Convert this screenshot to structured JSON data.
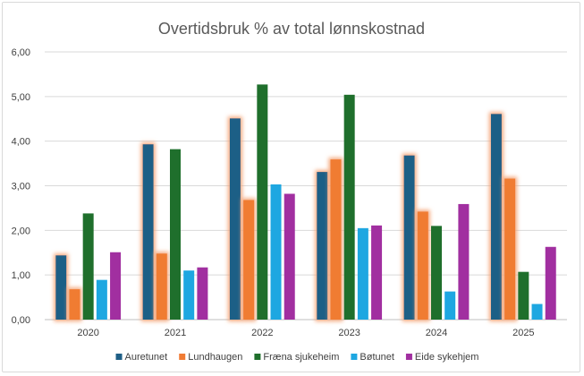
{
  "chart_data": {
    "type": "bar",
    "title": "Overtidsbruk % av total lønnskostnad",
    "xlabel": "",
    "ylabel": "",
    "categories": [
      "2020",
      "2021",
      "2022",
      "2023",
      "2024",
      "2025"
    ],
    "ylim": [
      0,
      6
    ],
    "ytick_values": [
      0,
      1,
      2,
      3,
      4,
      5,
      6
    ],
    "ytick_labels": [
      "0,00",
      "1,00",
      "2,00",
      "3,00",
      "4,00",
      "5,00",
      "6,00"
    ],
    "grid": true,
    "legend_position": "bottom",
    "series": [
      {
        "name": "Auretunet",
        "color": "#1f5f86",
        "glow": true,
        "values": [
          1.44,
          3.93,
          4.51,
          3.31,
          3.68,
          4.61
        ]
      },
      {
        "name": "Lundhaugen",
        "color": "#f07b33",
        "glow": true,
        "values": [
          0.68,
          1.48,
          2.68,
          3.59,
          2.42,
          3.16
        ]
      },
      {
        "name": "Fræna sjukeheim",
        "color": "#1f6f2c",
        "glow": false,
        "values": [
          2.38,
          3.82,
          5.27,
          5.04,
          2.1,
          1.07
        ]
      },
      {
        "name": "Bøtunet",
        "color": "#1ea7e1",
        "glow": false,
        "values": [
          0.89,
          1.1,
          3.03,
          2.05,
          0.63,
          0.35
        ]
      },
      {
        "name": "Eide sykehjem",
        "color": "#a12fa0",
        "glow": false,
        "values": [
          1.51,
          1.17,
          2.82,
          2.11,
          2.59,
          1.63
        ]
      }
    ]
  }
}
